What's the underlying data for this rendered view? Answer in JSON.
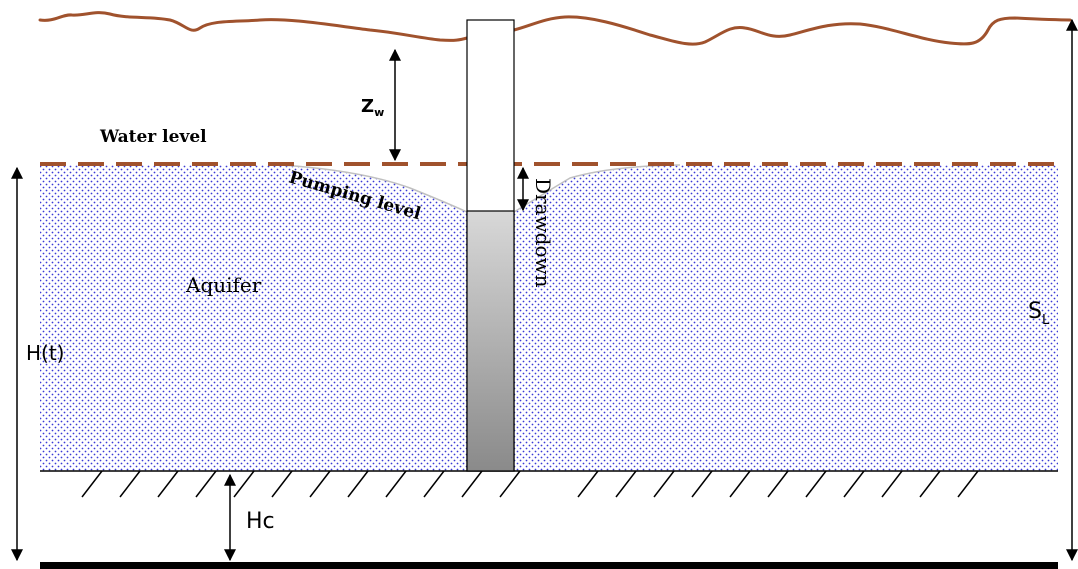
{
  "diagram": {
    "labels": {
      "water_level": "Water level",
      "pumping_level": "Pumping level",
      "drawdown": "Drawdown",
      "aquifer": "Aquifer",
      "z_main": "Z",
      "z_sub": "w",
      "h_of_t": "H(t)",
      "hc": "Hc",
      "s_main": "S",
      "s_sub": "L"
    },
    "colors": {
      "ground_surface": "#a0522d",
      "water_level_line": "#a0522d",
      "aquifer_dots": "#3a3ad6",
      "well_fill_top": "#d8d8d8",
      "well_fill_bottom": "#8a8a8a",
      "bedrock": "#000000",
      "cone": "#c8c8c8"
    }
  }
}
